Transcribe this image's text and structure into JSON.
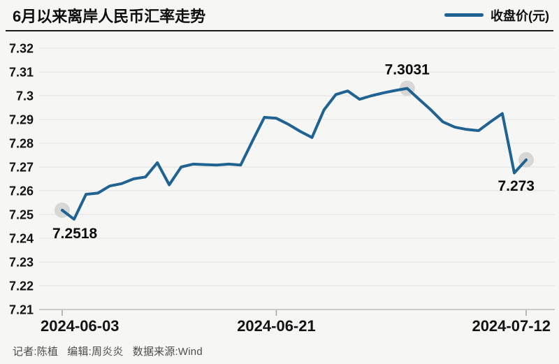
{
  "header": {
    "title": "6月以来离岸人民币汇率走势"
  },
  "legend": {
    "label": "收盘价(元)"
  },
  "footer": {
    "credits": "记者:陈植   编辑:周炎炎   数据来源:Wind"
  },
  "colors": {
    "line": "#206392",
    "marker": "#d7d7d5",
    "grid": "#e3e3e1",
    "axis_line": "#bdbdbb",
    "tick": "#a2a2a0",
    "axis_text": "#131313",
    "annotation_text": "#0b0b0b",
    "background": "#f6f6f4",
    "header_rule": "#1b1b1b",
    "footer_text": "#4c4c4c"
  },
  "chart_data": {
    "type": "line",
    "title": "6月以来离岸人民币汇率走势",
    "xlabel": "",
    "ylabel": "",
    "ylim": [
      7.21,
      7.32
    ],
    "y_tick_step": 0.01,
    "grid": true,
    "legend_position": "top-right",
    "series": [
      {
        "name": "收盘价(元)",
        "values": [
          7.2518,
          7.248,
          7.2585,
          7.259,
          7.262,
          7.263,
          7.265,
          7.2658,
          7.2718,
          7.2625,
          7.27,
          7.2712,
          7.271,
          7.2708,
          7.2712,
          7.2708,
          7.281,
          7.2909,
          7.2905,
          7.288,
          7.285,
          7.2824,
          7.294,
          7.3005,
          7.302,
          7.2985,
          7.3,
          7.3012,
          7.3022,
          7.3031,
          7.2985,
          7.294,
          7.289,
          7.2868,
          7.2858,
          7.2853,
          7.289,
          7.2925,
          7.2675,
          7.273
        ]
      }
    ],
    "x_ticks": [
      {
        "index": 0,
        "label": "2024-06-03"
      },
      {
        "index": 18,
        "label": "2024-06-21"
      },
      {
        "index": 39,
        "label": "2024-07-12"
      }
    ],
    "annotations": [
      {
        "index": 0,
        "label": "7.2518",
        "placement": "below-left"
      },
      {
        "index": 29,
        "label": "7.3031",
        "placement": "above"
      },
      {
        "index": 39,
        "label": "7.273",
        "placement": "below-right"
      }
    ],
    "marker_indices": [
      0,
      29,
      39
    ]
  }
}
